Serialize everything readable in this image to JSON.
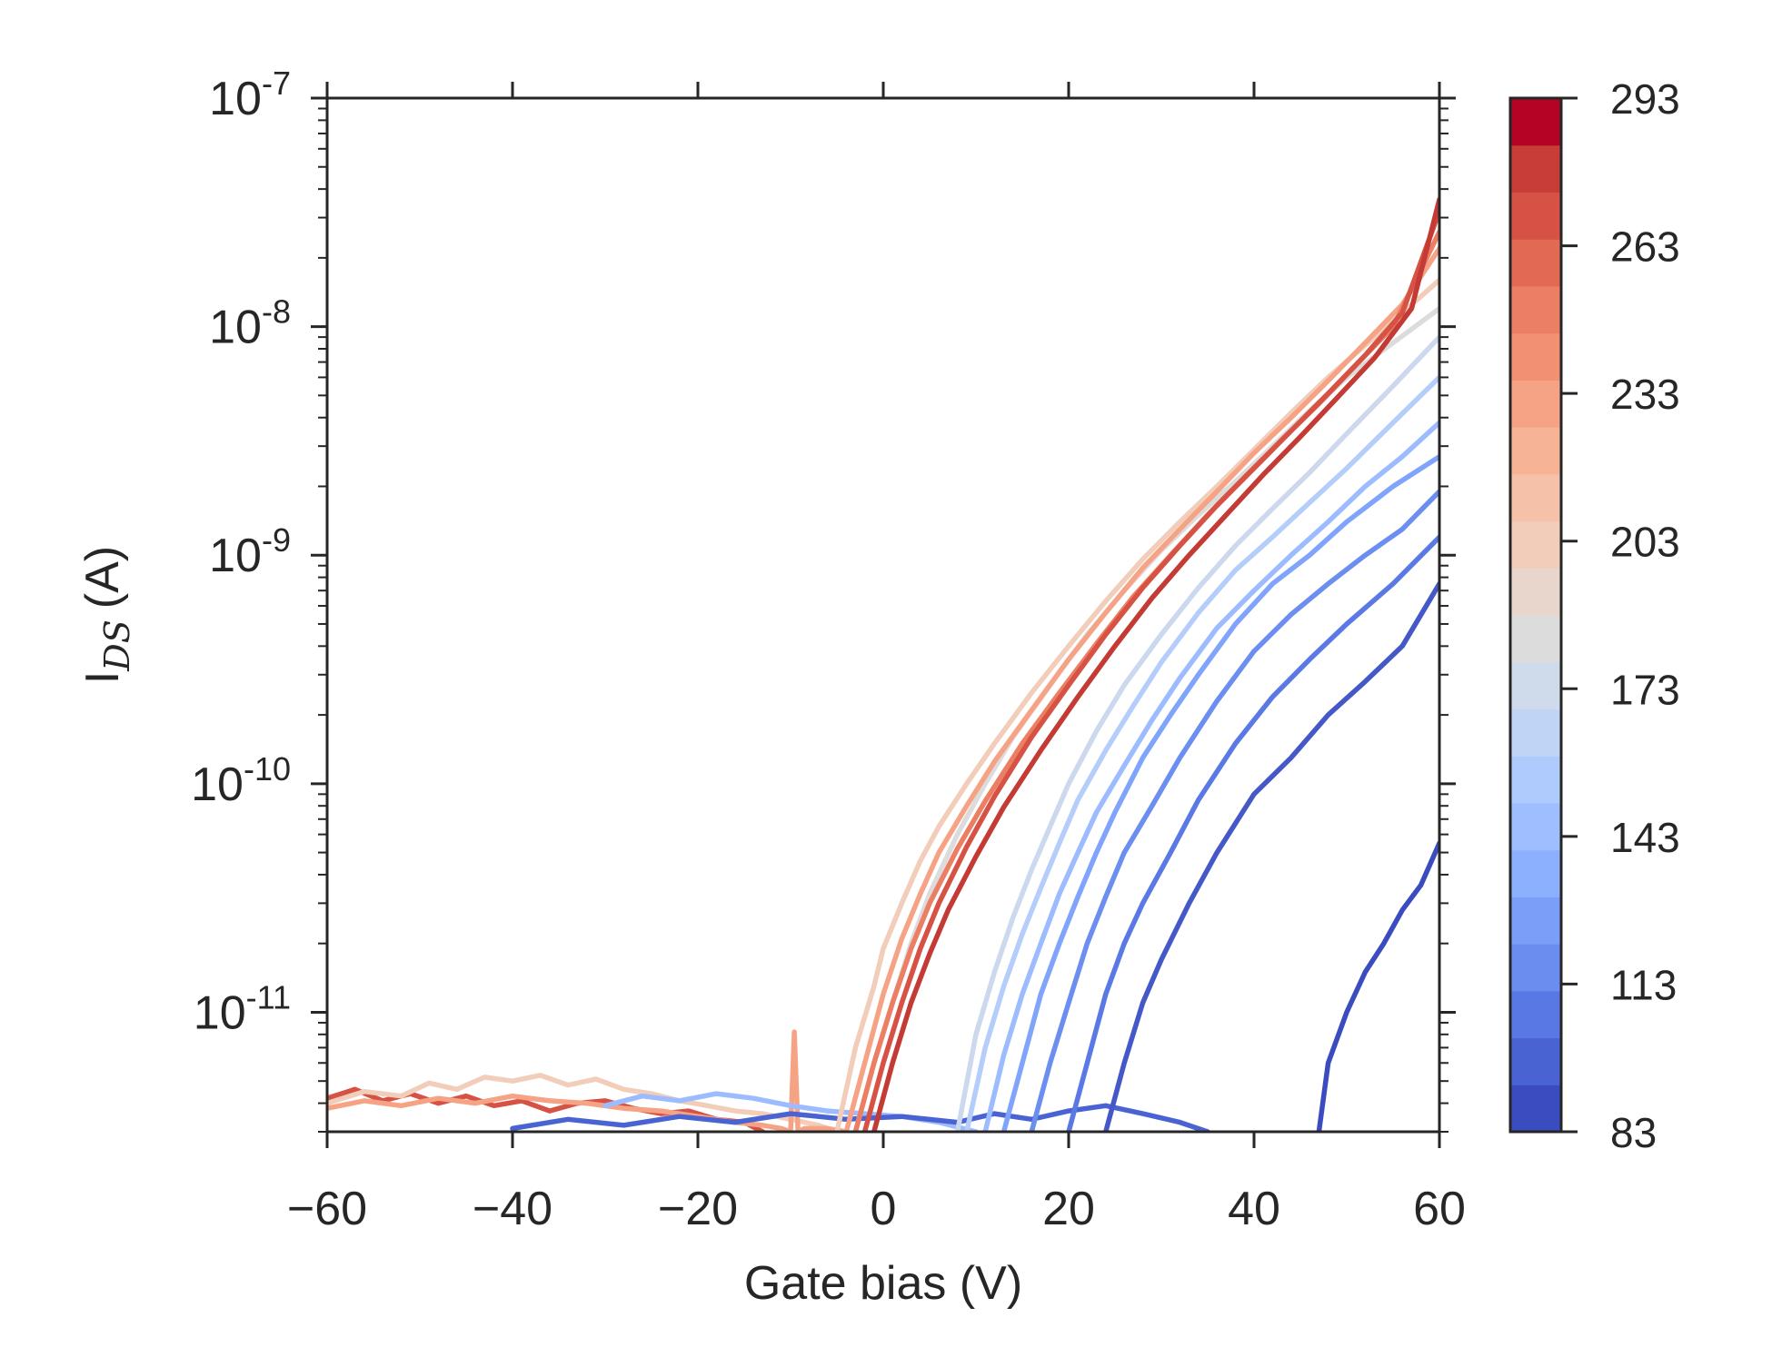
{
  "chart_data": {
    "type": "line",
    "title": "",
    "xlabel": "Gate bias (V)",
    "ylabel_main": "I",
    "ylabel_sub": "DS",
    "ylabel_unit": "(A)",
    "xlim": [
      -60,
      60
    ],
    "ylim": [
      3e-12,
      1e-07
    ],
    "yscale": "log",
    "grid": false,
    "xticks": [
      -60,
      -40,
      -20,
      0,
      20,
      40,
      60
    ],
    "xtick_labels": [
      "−60",
      "−40",
      "−20",
      "0",
      "20",
      "40",
      "60"
    ],
    "yticks": [
      {
        "value": 1e-11,
        "base": "10",
        "exp": "-11"
      },
      {
        "value": 1e-10,
        "base": "10",
        "exp": "-10"
      },
      {
        "value": 1e-09,
        "base": "10",
        "exp": "-9"
      },
      {
        "value": 1e-08,
        "base": "10",
        "exp": "-8"
      },
      {
        "value": 1e-07,
        "base": "10",
        "exp": "-7"
      }
    ],
    "colorbar": {
      "min": 83,
      "max": 293,
      "ticks": [
        83,
        113,
        143,
        173,
        203,
        233,
        263,
        293
      ],
      "tick_labels": [
        "83",
        "113",
        "143",
        "173",
        "203",
        "233",
        "263",
        "293"
      ],
      "colors": [
        "#3b4cc0",
        "#4a63d3",
        "#5a78e4",
        "#6b8df0",
        "#7b9ff9",
        "#8db0fe",
        "#9ebeff",
        "#afcafc",
        "#c0d4f5",
        "#cfdaea",
        "#dddcdc",
        "#e8d6cc",
        "#f1cdba",
        "#f5c1a9",
        "#f7b396",
        "#f6a385",
        "#f29072",
        "#ec7f63",
        "#e26952",
        "#d65244",
        "#c83d37",
        "#b40426"
      ]
    },
    "series": [
      {
        "temp": 83,
        "color": "#3b4cc0",
        "x": [
          47,
          48,
          50,
          52,
          54,
          56,
          58,
          60
        ],
        "y": [
          3e-12,
          6e-12,
          1e-11,
          1.5e-11,
          2e-11,
          2.8e-11,
          3.6e-11,
          5.5e-11
        ]
      },
      {
        "temp": 93,
        "color": "#4558c8",
        "x": [
          24,
          26,
          28,
          30,
          33,
          36,
          40,
          44,
          48,
          52,
          56,
          60
        ],
        "y": [
          3e-12,
          6e-12,
          1.1e-11,
          1.7e-11,
          3e-11,
          5e-11,
          9e-11,
          1.3e-10,
          2e-10,
          2.8e-10,
          4e-10,
          7.5e-10
        ]
      },
      {
        "temp": 113,
        "color": "#5b79e5",
        "x": [
          20,
          22,
          24,
          26,
          28,
          31,
          34,
          38,
          42,
          46,
          50,
          55,
          60
        ],
        "y": [
          3e-12,
          6e-12,
          1.2e-11,
          2e-11,
          3e-11,
          5e-11,
          8.5e-11,
          1.5e-10,
          2.4e-10,
          3.5e-10,
          5e-10,
          7.5e-10,
          1.2e-09
        ]
      },
      {
        "temp": 128,
        "color": "#6c8ef1",
        "x": [
          16,
          18,
          20,
          22,
          24,
          26,
          29,
          32,
          36,
          40,
          44,
          48,
          52,
          56,
          60
        ],
        "y": [
          3e-12,
          6e-12,
          1.1e-11,
          2e-11,
          3.2e-11,
          5e-11,
          8e-11,
          1.3e-10,
          2.3e-10,
          3.8e-10,
          5.5e-10,
          7.5e-10,
          1e-09,
          1.3e-09,
          1.9e-09
        ]
      },
      {
        "temp": 143,
        "color": "#80a4fb",
        "x": [
          13,
          15,
          17,
          19,
          21,
          23,
          25,
          28,
          31,
          34,
          38,
          42,
          46,
          50,
          55,
          60
        ],
        "y": [
          3e-12,
          6e-12,
          1.2e-11,
          2e-11,
          3.2e-11,
          5e-11,
          7.5e-11,
          1.3e-10,
          2e-10,
          3e-10,
          5e-10,
          7.5e-10,
          1e-09,
          1.4e-09,
          2e-09,
          2.7e-09
        ]
      },
      {
        "temp": 158,
        "color": "#9cbcff",
        "x": [
          11,
          13,
          15,
          17,
          19,
          21,
          23,
          26,
          29,
          32,
          36,
          40,
          44,
          48,
          52,
          56,
          60
        ],
        "y": [
          3e-12,
          6.5e-12,
          1.2e-11,
          2e-11,
          3.3e-11,
          5e-11,
          7.5e-11,
          1.2e-10,
          1.9e-10,
          2.9e-10,
          4.8e-10,
          7e-10,
          1e-09,
          1.4e-09,
          2e-09,
          2.7e-09,
          3.8e-09
        ]
      },
      {
        "temp": 173,
        "color": "#b4cdfa",
        "x": [
          9,
          11,
          13,
          15,
          17,
          19,
          21,
          24,
          27,
          30,
          34,
          38,
          42,
          46,
          50,
          55,
          60
        ],
        "y": [
          3e-12,
          7e-12,
          1.3e-11,
          2.2e-11,
          3.5e-11,
          5.5e-11,
          8.5e-11,
          1.4e-10,
          2.2e-10,
          3.4e-10,
          5.6e-10,
          8.6e-10,
          1.2e-09,
          1.7e-09,
          2.4e-09,
          3.8e-09,
          6e-09
        ]
      },
      {
        "temp": 188,
        "color": "#ccd8ee",
        "x": [
          8,
          10,
          12,
          14,
          16,
          18,
          20,
          23,
          26,
          30,
          34,
          38,
          42,
          46,
          50,
          55,
          60
        ],
        "y": [
          3e-12,
          8e-12,
          1.5e-11,
          2.6e-11,
          4.2e-11,
          6.5e-11,
          1e-10,
          1.7e-10,
          2.7e-10,
          4.5e-10,
          7.2e-10,
          1.1e-09,
          1.6e-09,
          2.3e-09,
          3.4e-09,
          5.5e-09,
          9e-09
        ]
      },
      {
        "temp": 203,
        "color": "#dddcdc",
        "x": [
          -3,
          -1,
          1,
          3,
          5,
          8,
          11,
          14,
          18,
          22,
          26,
          30,
          34,
          38,
          42,
          46,
          50,
          55,
          60
        ],
        "y": [
          3e-12,
          6e-12,
          1.1e-11,
          2e-11,
          3.3e-11,
          6e-11,
          1e-10,
          1.6e-10,
          2.7e-10,
          4.5e-10,
          7e-10,
          1.05e-09,
          1.5e-09,
          2.1e-09,
          3e-09,
          4.3e-09,
          6e-09,
          8.5e-09,
          1.2e-08
        ]
      },
      {
        "temp": 218,
        "color": "#f1cdba",
        "x": [
          -5,
          -3,
          -1,
          0,
          2,
          4,
          6,
          9,
          12,
          16,
          20,
          24,
          28,
          32,
          36,
          40,
          44,
          48,
          52,
          56,
          60
        ],
        "y": [
          3e-12,
          7e-12,
          1.3e-11,
          1.9e-11,
          3e-11,
          4.6e-11,
          6.5e-11,
          1e-10,
          1.5e-10,
          2.5e-10,
          4e-10,
          6.3e-10,
          9.6e-10,
          1.4e-09,
          2e-09,
          2.9e-09,
          4.2e-09,
          6e-09,
          8.3e-09,
          1.15e-08,
          1.6e-08
        ]
      },
      {
        "temp": 233,
        "color": "#f6a385",
        "x": [
          -4,
          -2,
          0,
          2,
          4,
          6,
          9,
          12,
          16,
          20,
          24,
          28,
          32,
          36,
          40,
          44,
          48,
          52,
          56,
          60
        ],
        "y": [
          3e-12,
          6e-12,
          1.2e-11,
          2.1e-11,
          3.3e-11,
          5e-11,
          8e-11,
          1.25e-10,
          2.1e-10,
          3.5e-10,
          5.6e-10,
          8.8e-10,
          1.3e-09,
          1.9e-09,
          2.8e-09,
          4e-09,
          5.8e-09,
          8.5e-09,
          1.25e-08,
          2.2e-08
        ]
      },
      {
        "temp": 248,
        "color": "#ec7f63",
        "x": [
          -3,
          -1,
          1,
          3,
          5,
          8,
          11,
          15,
          19,
          23,
          27,
          31,
          35,
          39,
          43,
          47,
          51,
          55,
          60
        ],
        "y": [
          3e-12,
          6e-12,
          1.1e-11,
          1.9e-11,
          3e-11,
          5.2e-11,
          8.4e-11,
          1.5e-10,
          2.5e-10,
          4.1e-10,
          6.6e-10,
          1e-09,
          1.5e-09,
          2.2e-09,
          3.2e-09,
          4.6e-09,
          6.8e-09,
          1e-08,
          2.6e-08
        ]
      },
      {
        "temp": 263,
        "color": "#d65244",
        "x": [
          -2,
          0,
          2,
          4,
          6,
          9,
          12,
          16,
          20,
          24,
          28,
          32,
          36,
          40,
          44,
          48,
          52,
          56,
          60
        ],
        "y": [
          3e-12,
          6e-12,
          1.1e-11,
          1.9e-11,
          3e-11,
          5.3e-11,
          8.8e-11,
          1.6e-10,
          2.7e-10,
          4.5e-10,
          7.2e-10,
          1.1e-09,
          1.65e-09,
          2.4e-09,
          3.5e-09,
          5.1e-09,
          7.5e-09,
          1.15e-08,
          3.2e-08
        ]
      },
      {
        "temp": 283,
        "color": "#c43a35",
        "x": [
          -1,
          1,
          3,
          5,
          7,
          10,
          13,
          17,
          21,
          25,
          29,
          33,
          37,
          41,
          45,
          49,
          53,
          57,
          60
        ],
        "y": [
          3e-12,
          6e-12,
          1.1e-11,
          1.8e-11,
          2.8e-11,
          4.8e-11,
          7.9e-11,
          1.4e-10,
          2.4e-10,
          4e-10,
          6.5e-10,
          1e-09,
          1.5e-09,
          2.25e-09,
          3.3e-09,
          4.9e-09,
          7.3e-09,
          1.2e-08,
          3.6e-08
        ]
      }
    ],
    "noise_segments": [
      {
        "color": "#d65244",
        "x": [
          -60,
          -57,
          -54,
          -51,
          -48,
          -45,
          -42,
          -39,
          -36,
          -33,
          -30,
          -27,
          -24,
          -21,
          -18,
          -15,
          -13
        ],
        "y": [
          4.2e-12,
          4.6e-12,
          4.1e-12,
          4.4e-12,
          4e-12,
          4.3e-12,
          3.9e-12,
          4.1e-12,
          3.7e-12,
          4e-12,
          4.1e-12,
          3.8e-12,
          3.6e-12,
          3.7e-12,
          3.4e-12,
          3.3e-12,
          3e-12
        ]
      },
      {
        "color": "#f1cdba",
        "x": [
          -60,
          -56,
          -52,
          -49,
          -46,
          -43,
          -40,
          -37,
          -34,
          -31,
          -28,
          -25,
          -22,
          -19,
          -16,
          -13,
          -10,
          -7,
          -5
        ],
        "y": [
          4e-12,
          4.5e-12,
          4.3e-12,
          4.9e-12,
          4.6e-12,
          5.2e-12,
          5e-12,
          5.3e-12,
          4.8e-12,
          5.1e-12,
          4.6e-12,
          4.4e-12,
          4.1e-12,
          3.9e-12,
          3.7e-12,
          3.6e-12,
          3.4e-12,
          3.2e-12,
          3e-12
        ]
      },
      {
        "color": "#f6a385",
        "x": [
          -60,
          -56,
          -52,
          -48,
          -44,
          -40,
          -36,
          -32,
          -28,
          -24,
          -20,
          -16,
          -13,
          -11,
          -10,
          -9.6,
          -9.2,
          -8.5,
          -6,
          -4
        ],
        "y": [
          3.8e-12,
          4.1e-12,
          3.9e-12,
          4.2e-12,
          4e-12,
          4.3e-12,
          4.1e-12,
          4e-12,
          3.8e-12,
          3.7e-12,
          3.5e-12,
          3.3e-12,
          3.2e-12,
          3.1e-12,
          3e-12,
          8.2e-12,
          3e-12,
          3.1e-12,
          3.1e-12,
          3e-12
        ]
      },
      {
        "color": "#9cbcff",
        "x": [
          -30,
          -26,
          -22,
          -18,
          -14,
          -10,
          -6,
          -2,
          2,
          6,
          10
        ],
        "y": [
          3.9e-12,
          4.3e-12,
          4.1e-12,
          4.4e-12,
          4.2e-12,
          3.9e-12,
          3.7e-12,
          3.6e-12,
          3.5e-12,
          3.3e-12,
          3e-12
        ]
      },
      {
        "color": "#4a63d3",
        "x": [
          -40,
          -34,
          -28,
          -22,
          -16,
          -10,
          -4,
          2,
          8,
          12,
          16,
          20,
          24,
          28,
          32,
          35
        ],
        "y": [
          3.1e-12,
          3.4e-12,
          3.2e-12,
          3.5e-12,
          3.3e-12,
          3.6e-12,
          3.4e-12,
          3.5e-12,
          3.3e-12,
          3.6e-12,
          3.4e-12,
          3.7e-12,
          3.9e-12,
          3.6e-12,
          3.3e-12,
          3e-12
        ]
      }
    ]
  }
}
